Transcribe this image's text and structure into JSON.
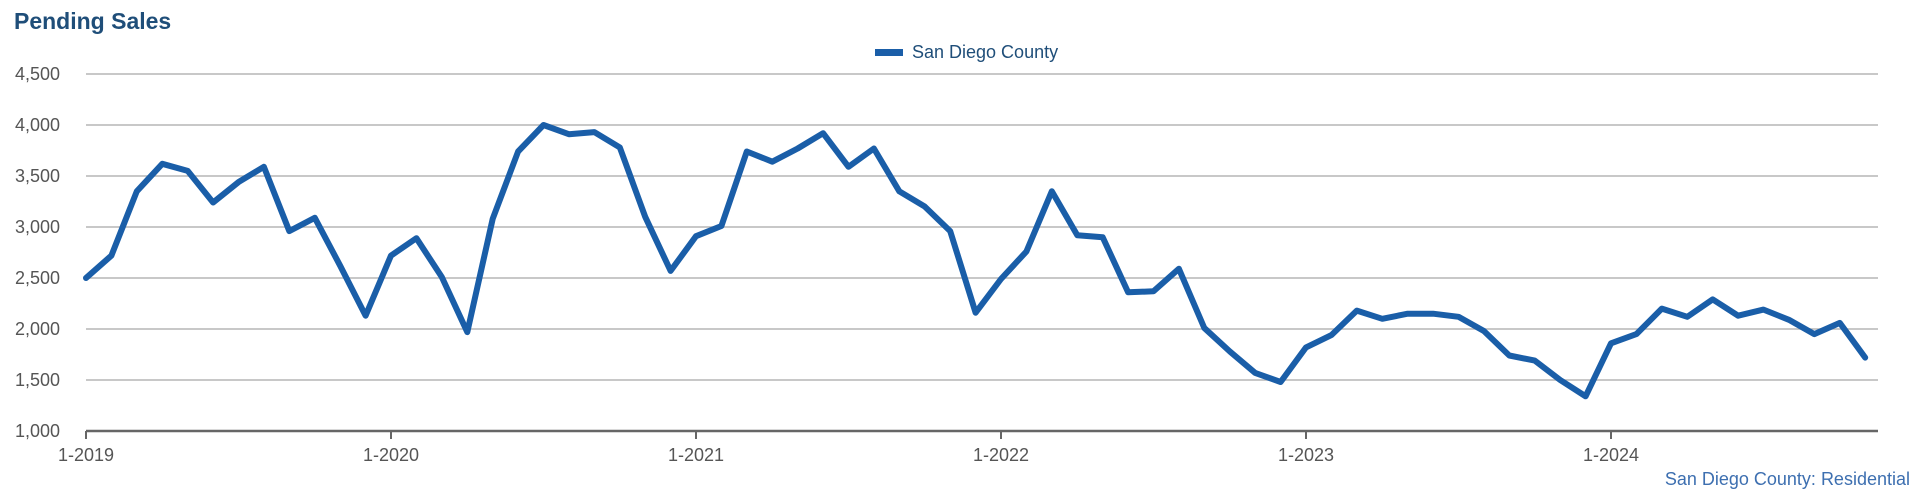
{
  "colors": {
    "series": "#1a5ea8",
    "grid": "#b5b5b5",
    "axis": "#666666",
    "title": "#1f4e79"
  },
  "chart_data": {
    "type": "line",
    "title": "Pending Sales",
    "source_label": "San Diego County: Residential",
    "xlabel": "",
    "ylabel": "",
    "ylim": [
      1000,
      4500
    ],
    "y_ticks": [
      "1,000",
      "1,500",
      "2,000",
      "2,500",
      "3,000",
      "3,500",
      "4,000",
      "4,500"
    ],
    "x_ticks": [
      "1-2019",
      "1-2020",
      "1-2021",
      "1-2022",
      "1-2023",
      "1-2024"
    ],
    "grid": true,
    "legend_position": "top-center",
    "series": [
      {
        "name": "San Diego County",
        "start": "2019-01",
        "values": [
          2500,
          2720,
          3350,
          3620,
          3550,
          3240,
          3440,
          3590,
          2960,
          3090,
          2620,
          2130,
          2720,
          2890,
          2510,
          1970,
          3080,
          3740,
          4000,
          3910,
          3930,
          3780,
          3100,
          2570,
          2910,
          3010,
          3740,
          3640,
          3770,
          3920,
          3590,
          3770,
          3350,
          3200,
          2960,
          2160,
          2490,
          2760,
          3350,
          2920,
          2900,
          2360,
          2370,
          2590,
          2010,
          1780,
          1570,
          1480,
          1820,
          1940,
          2180,
          2100,
          2150,
          2150,
          2120,
          1980,
          1740,
          1690,
          1500,
          1340,
          1860,
          1950,
          2200,
          2120,
          2290,
          2130,
          2190,
          2090,
          1950,
          2060,
          1720
        ]
      }
    ]
  }
}
